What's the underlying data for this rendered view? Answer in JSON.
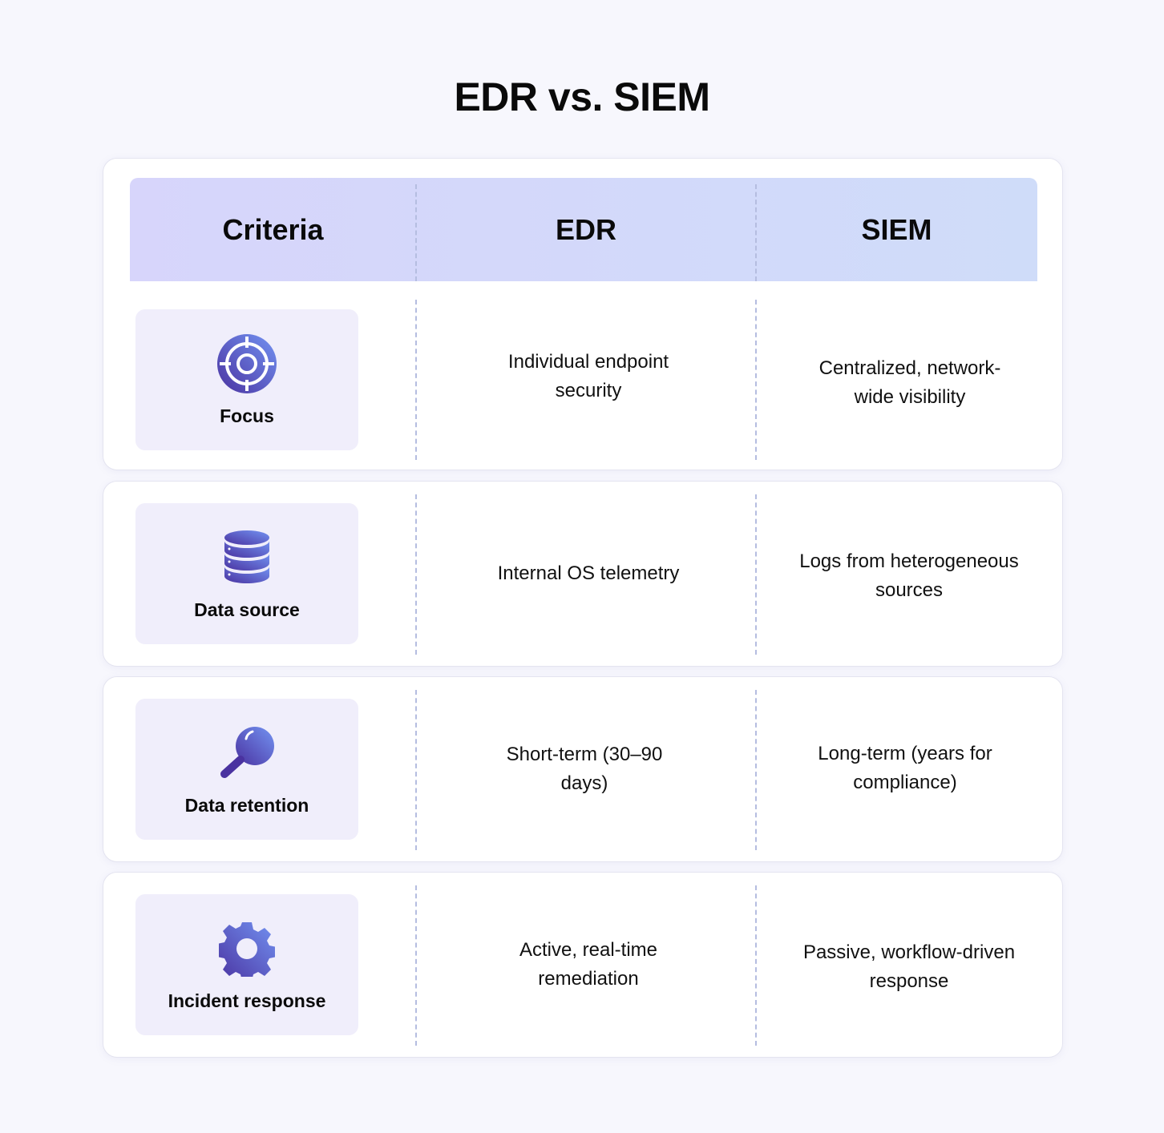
{
  "title": "EDR vs. SIEM",
  "header": {
    "criteria": "Criteria",
    "edr": "EDR",
    "siem": "SIEM"
  },
  "colors": {
    "accent_dark": "#4a32a0",
    "accent_light": "#7393f2",
    "header_left": "#d7d5fb",
    "header_right": "#cfdcf9",
    "criteria_bg": "#f0eefb"
  },
  "rows": [
    {
      "criteria": "Focus",
      "icon": "target-icon",
      "edr": "Individual endpoint security",
      "siem": "Centralized, network-wide visibility"
    },
    {
      "criteria": "Data source",
      "icon": "database-icon",
      "edr": "Internal OS telemetry",
      "siem": "Logs from heterogeneous sources"
    },
    {
      "criteria": "Data retention",
      "icon": "magnifier-icon",
      "edr": "Short-term (30–90 days)",
      "siem": "Long-term (years for compliance)"
    },
    {
      "criteria": "Incident response",
      "icon": "gear-icon",
      "edr": "Active, real-time remediation",
      "siem": "Passive, workflow-driven response"
    }
  ]
}
